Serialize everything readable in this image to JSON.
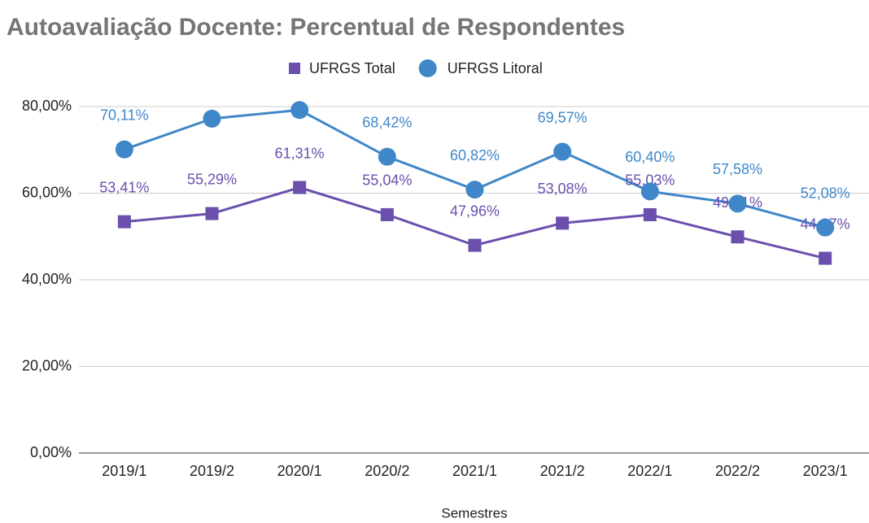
{
  "chart_data": {
    "type": "line",
    "title": "Autoavaliação Docente: Percentual de Respondentes",
    "x_label": "Semestres",
    "categories": [
      "2019/1",
      "2019/2",
      "2020/1",
      "2020/2",
      "2021/1",
      "2021/2",
      "2022/1",
      "2022/2",
      "2023/1"
    ],
    "series": [
      {
        "name": "UFRGS Total",
        "color": "#6a4fad",
        "marker": "square",
        "values": [
          53.41,
          55.29,
          61.31,
          55.04,
          47.96,
          53.08,
          55.03,
          49.91,
          44.97
        ],
        "value_labels": [
          "53,41%",
          "55,29%",
          "61,31%",
          "55,04%",
          "47,96%",
          "53,08%",
          "55,03%",
          "49,91%",
          "44,97%"
        ]
      },
      {
        "name": "UFRGS Litoral",
        "color": "#3f87c9",
        "marker": "circle",
        "values": [
          70.11,
          77.2,
          79.2,
          68.42,
          60.82,
          69.57,
          60.4,
          57.58,
          52.08
        ],
        "value_labels": [
          "70,11%",
          null,
          null,
          "68,42%",
          "60,82%",
          "69,57%",
          "60,40%",
          "57,58%",
          "52,08%"
        ]
      }
    ],
    "ylim": [
      0,
      80
    ],
    "yticks": [
      {
        "value": 0,
        "label": "0,00%"
      },
      {
        "value": 20,
        "label": "20,00%"
      },
      {
        "value": 40,
        "label": "40,00%"
      },
      {
        "value": 60,
        "label": "60,00%"
      },
      {
        "value": 80,
        "label": "80,00%"
      }
    ],
    "grid": true,
    "legend": "top"
  }
}
